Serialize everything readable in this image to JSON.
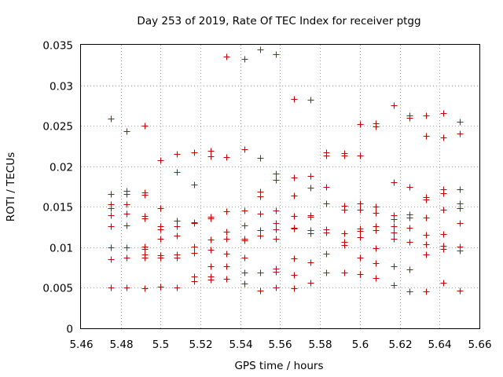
{
  "chart_data": {
    "type": "scatter",
    "title": "Day 253 of 2019, Rate Of TEC Index for receiver ptgg",
    "xlabel": "GPS time / hours",
    "ylabel": "ROTI / TECUs",
    "xlim": [
      5.46,
      5.66
    ],
    "ylim": [
      0,
      0.035
    ],
    "x_ticks": [
      "5.46",
      "5.48",
      "5.5",
      "5.52",
      "5.54",
      "5.56",
      "5.58",
      "5.6",
      "5.62",
      "5.64",
      "5.66"
    ],
    "y_ticks": [
      "0",
      "0.005",
      "0.01",
      "0.015",
      "0.02",
      "0.025",
      "0.03",
      "0.035"
    ],
    "grid": true,
    "marker": "plus",
    "color": "#cc0000",
    "series": [
      {
        "name": "ROTI",
        "points": [
          [
            5.475,
            0.0259
          ],
          [
            5.475,
            0.0166
          ],
          [
            5.475,
            0.0153
          ],
          [
            5.475,
            0.0148
          ],
          [
            5.475,
            0.014
          ],
          [
            5.475,
            0.0126
          ],
          [
            5.475,
            0.01
          ],
          [
            5.475,
            0.0085
          ],
          [
            5.475,
            0.005
          ],
          [
            5.483,
            0.0243
          ],
          [
            5.483,
            0.017
          ],
          [
            5.483,
            0.0166
          ],
          [
            5.483,
            0.0153
          ],
          [
            5.483,
            0.0142
          ],
          [
            5.483,
            0.0127
          ],
          [
            5.483,
            0.01
          ],
          [
            5.483,
            0.0087
          ],
          [
            5.483,
            0.005
          ],
          [
            5.492,
            0.025
          ],
          [
            5.492,
            0.0168
          ],
          [
            5.492,
            0.0165
          ],
          [
            5.492,
            0.0139
          ],
          [
            5.492,
            0.0136
          ],
          [
            5.492,
            0.0101
          ],
          [
            5.492,
            0.0098
          ],
          [
            5.492,
            0.0091
          ],
          [
            5.492,
            0.0087
          ],
          [
            5.492,
            0.0049
          ],
          [
            5.5,
            0.0207
          ],
          [
            5.5,
            0.0148
          ],
          [
            5.5,
            0.0126
          ],
          [
            5.5,
            0.0122
          ],
          [
            5.5,
            0.0111
          ],
          [
            5.5,
            0.009
          ],
          [
            5.5,
            0.0087
          ],
          [
            5.5,
            0.0051
          ],
          [
            5.508,
            0.0215
          ],
          [
            5.508,
            0.0193
          ],
          [
            5.508,
            0.0133
          ],
          [
            5.508,
            0.0126
          ],
          [
            5.508,
            0.0114
          ],
          [
            5.508,
            0.0091
          ],
          [
            5.508,
            0.0087
          ],
          [
            5.508,
            0.005
          ],
          [
            5.517,
            0.0217
          ],
          [
            5.517,
            0.0177
          ],
          [
            5.517,
            0.0131
          ],
          [
            5.517,
            0.013
          ],
          [
            5.517,
            0.0101
          ],
          [
            5.517,
            0.0093
          ],
          [
            5.517,
            0.0064
          ],
          [
            5.517,
            0.0058
          ],
          [
            5.525,
            0.0219
          ],
          [
            5.525,
            0.0212
          ],
          [
            5.525,
            0.0138
          ],
          [
            5.525,
            0.0136
          ],
          [
            5.525,
            0.011
          ],
          [
            5.525,
            0.0097
          ],
          [
            5.525,
            0.0077
          ],
          [
            5.525,
            0.0064
          ],
          [
            5.525,
            0.006
          ],
          [
            5.533,
            0.0335
          ],
          [
            5.533,
            0.0211
          ],
          [
            5.533,
            0.0144
          ],
          [
            5.533,
            0.0119
          ],
          [
            5.533,
            0.0111
          ],
          [
            5.533,
            0.0092
          ],
          [
            5.533,
            0.0077
          ],
          [
            5.533,
            0.0061
          ],
          [
            5.542,
            0.0333
          ],
          [
            5.542,
            0.0221
          ],
          [
            5.542,
            0.0145
          ],
          [
            5.542,
            0.0127
          ],
          [
            5.542,
            0.0111
          ],
          [
            5.542,
            0.0109
          ],
          [
            5.542,
            0.0087
          ],
          [
            5.542,
            0.0069
          ],
          [
            5.542,
            0.0055
          ],
          [
            5.55,
            0.0344
          ],
          [
            5.55,
            0.021
          ],
          [
            5.55,
            0.0169
          ],
          [
            5.55,
            0.0163
          ],
          [
            5.55,
            0.0142
          ],
          [
            5.55,
            0.0121
          ],
          [
            5.55,
            0.0114
          ],
          [
            5.55,
            0.0069
          ],
          [
            5.55,
            0.0047
          ],
          [
            5.558,
            0.0338
          ],
          [
            5.558,
            0.0191
          ],
          [
            5.558,
            0.0183
          ],
          [
            5.558,
            0.0145
          ],
          [
            5.558,
            0.013
          ],
          [
            5.558,
            0.0122
          ],
          [
            5.558,
            0.0111
          ],
          [
            5.558,
            0.0074
          ],
          [
            5.558,
            0.007
          ],
          [
            5.558,
            0.005
          ],
          [
            5.567,
            0.0283
          ],
          [
            5.567,
            0.0186
          ],
          [
            5.567,
            0.0164
          ],
          [
            5.567,
            0.0139
          ],
          [
            5.567,
            0.0124
          ],
          [
            5.567,
            0.0123
          ],
          [
            5.567,
            0.0086
          ],
          [
            5.567,
            0.0066
          ],
          [
            5.567,
            0.0049
          ],
          [
            5.575,
            0.0282
          ],
          [
            5.575,
            0.0188
          ],
          [
            5.575,
            0.0174
          ],
          [
            5.575,
            0.014
          ],
          [
            5.575,
            0.0138
          ],
          [
            5.575,
            0.0121
          ],
          [
            5.575,
            0.0117
          ],
          [
            5.575,
            0.0081
          ],
          [
            5.575,
            0.0056
          ],
          [
            5.583,
            0.0217
          ],
          [
            5.583,
            0.0213
          ],
          [
            5.583,
            0.0175
          ],
          [
            5.583,
            0.0154
          ],
          [
            5.583,
            0.0122
          ],
          [
            5.583,
            0.0118
          ],
          [
            5.583,
            0.0092
          ],
          [
            5.583,
            0.0069
          ],
          [
            5.592,
            0.0216
          ],
          [
            5.592,
            0.0213
          ],
          [
            5.592,
            0.0151
          ],
          [
            5.592,
            0.0146
          ],
          [
            5.592,
            0.0117
          ],
          [
            5.592,
            0.0107
          ],
          [
            5.592,
            0.0103
          ],
          [
            5.592,
            0.0069
          ],
          [
            5.6,
            0.0252
          ],
          [
            5.6,
            0.0213
          ],
          [
            5.6,
            0.0154
          ],
          [
            5.6,
            0.0146
          ],
          [
            5.6,
            0.0123
          ],
          [
            5.6,
            0.012
          ],
          [
            5.6,
            0.0112
          ],
          [
            5.6,
            0.0087
          ],
          [
            5.6,
            0.0067
          ],
          [
            5.608,
            0.0253
          ],
          [
            5.608,
            0.0249
          ],
          [
            5.608,
            0.015
          ],
          [
            5.608,
            0.0143
          ],
          [
            5.608,
            0.0126
          ],
          [
            5.608,
            0.0121
          ],
          [
            5.608,
            0.0099
          ],
          [
            5.608,
            0.008
          ],
          [
            5.608,
            0.0062
          ],
          [
            5.617,
            0.0275
          ],
          [
            5.617,
            0.018
          ],
          [
            5.617,
            0.014
          ],
          [
            5.617,
            0.0135
          ],
          [
            5.617,
            0.0126
          ],
          [
            5.617,
            0.0118
          ],
          [
            5.617,
            0.0111
          ],
          [
            5.617,
            0.0077
          ],
          [
            5.617,
            0.0053
          ],
          [
            5.625,
            0.0263
          ],
          [
            5.625,
            0.026
          ],
          [
            5.625,
            0.0175
          ],
          [
            5.625,
            0.0141
          ],
          [
            5.625,
            0.0137
          ],
          [
            5.625,
            0.0124
          ],
          [
            5.625,
            0.0107
          ],
          [
            5.625,
            0.0073
          ],
          [
            5.625,
            0.0046
          ],
          [
            5.633,
            0.0263
          ],
          [
            5.633,
            0.0238
          ],
          [
            5.633,
            0.0162
          ],
          [
            5.633,
            0.0159
          ],
          [
            5.633,
            0.0137
          ],
          [
            5.633,
            0.0115
          ],
          [
            5.633,
            0.0104
          ],
          [
            5.633,
            0.0091
          ],
          [
            5.633,
            0.0046
          ],
          [
            5.642,
            0.0266
          ],
          [
            5.642,
            0.0236
          ],
          [
            5.642,
            0.0172
          ],
          [
            5.642,
            0.0167
          ],
          [
            5.642,
            0.0146
          ],
          [
            5.642,
            0.0116
          ],
          [
            5.642,
            0.0102
          ],
          [
            5.642,
            0.0098
          ],
          [
            5.642,
            0.0056
          ],
          [
            5.65,
            0.0255
          ],
          [
            5.65,
            0.024
          ],
          [
            5.65,
            0.0172
          ],
          [
            5.65,
            0.0154
          ],
          [
            5.65,
            0.0148
          ],
          [
            5.65,
            0.013
          ],
          [
            5.65,
            0.0101
          ],
          [
            5.65,
            0.0096
          ],
          [
            5.65,
            0.0047
          ]
        ]
      }
    ]
  }
}
